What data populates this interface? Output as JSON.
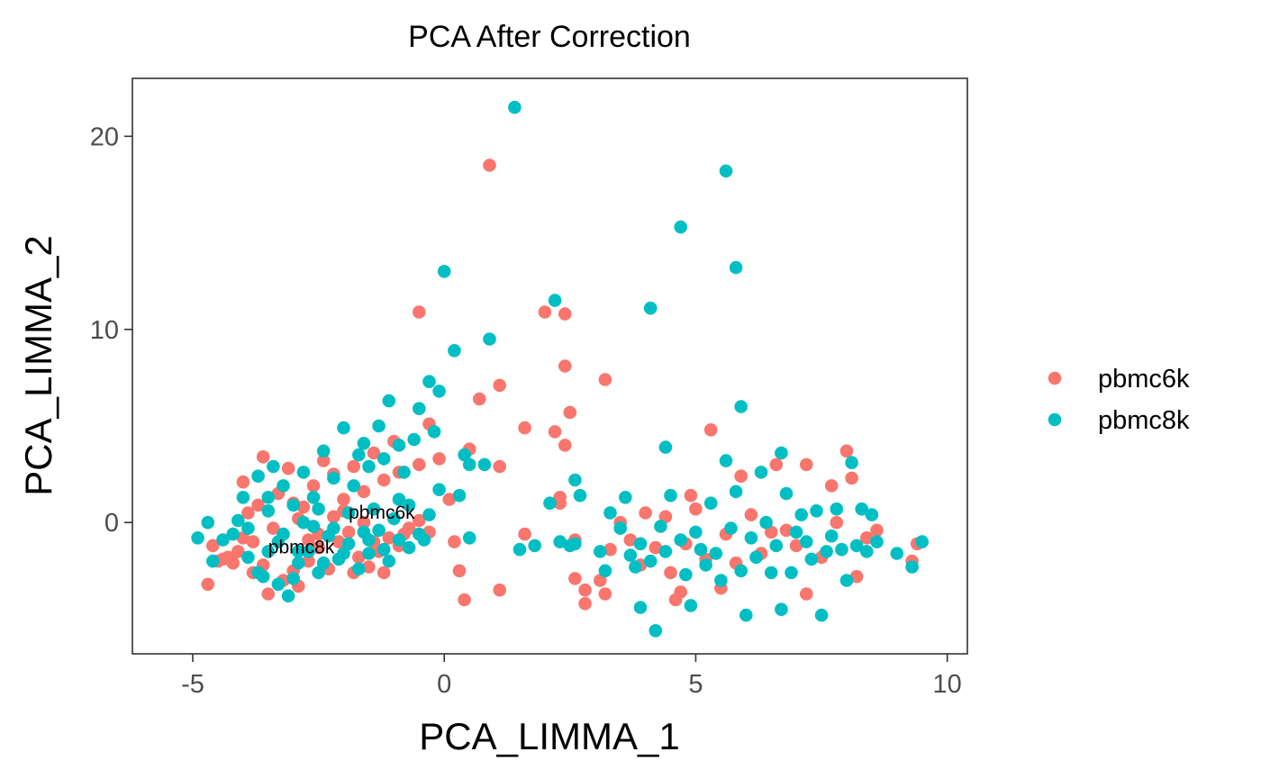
{
  "chart_data": {
    "type": "scatter",
    "title": "PCA After Correction",
    "xlabel": "PCA_LIMMA_1",
    "ylabel": "PCA_LIMMA_2",
    "xlim": [
      -6.2,
      10.4
    ],
    "ylim": [
      -6.8,
      23
    ],
    "x_ticks": [
      -5,
      0,
      5,
      10
    ],
    "x_tick_labels": [
      "-5",
      "0",
      "5",
      "10"
    ],
    "y_ticks": [
      0,
      10,
      20
    ],
    "y_tick_labels": [
      "0",
      "10",
      "20"
    ],
    "grid": false,
    "legend_position": "right",
    "annotations": [
      {
        "text": "pbmc6k",
        "x": -1.9,
        "y": 0.2
      },
      {
        "text": "pbmc8k",
        "x": -3.5,
        "y": -1.6
      }
    ],
    "series": [
      {
        "name": "pbmc6k",
        "color": "#F8766D",
        "points": [
          [
            -4.7,
            -3.2
          ],
          [
            -4.5,
            -2.0
          ],
          [
            -4.3,
            -1.8
          ],
          [
            -4.6,
            -1.2
          ],
          [
            -4.1,
            -1.5
          ],
          [
            -4.0,
            -0.8
          ],
          [
            -3.8,
            -1.0
          ],
          [
            -3.6,
            -2.2
          ],
          [
            -3.5,
            -3.7
          ],
          [
            -3.2,
            -3.0
          ],
          [
            -3.0,
            -2.5
          ],
          [
            -2.9,
            -3.3
          ],
          [
            -2.7,
            -2.0
          ],
          [
            -2.5,
            -1.3
          ],
          [
            -2.3,
            -2.4
          ],
          [
            -2.1,
            -1.0
          ],
          [
            -1.9,
            -0.5
          ],
          [
            -1.7,
            -1.8
          ],
          [
            -1.5,
            -2.3
          ],
          [
            -1.3,
            -1.5
          ],
          [
            -1.1,
            -0.8
          ],
          [
            -0.9,
            -1.2
          ],
          [
            -0.7,
            -0.3
          ],
          [
            -0.5,
            0.1
          ],
          [
            -0.3,
            -0.5
          ],
          [
            -4.0,
            2.1
          ],
          [
            -3.6,
            3.4
          ],
          [
            -3.3,
            1.5
          ],
          [
            -3.1,
            2.8
          ],
          [
            -2.8,
            0.8
          ],
          [
            -2.6,
            1.9
          ],
          [
            -2.4,
            3.2
          ],
          [
            -2.2,
            2.5
          ],
          [
            -2.0,
            1.2
          ],
          [
            -1.8,
            2.9
          ],
          [
            -1.6,
            1.6
          ],
          [
            -1.4,
            3.6
          ],
          [
            -1.2,
            2.2
          ],
          [
            -1.0,
            4.2
          ],
          [
            -0.9,
            2.6
          ],
          [
            -0.5,
            3.0
          ],
          [
            -0.3,
            5.1
          ],
          [
            -0.5,
            10.9
          ],
          [
            -0.1,
            3.3
          ],
          [
            -3.9,
            0.5
          ],
          [
            -3.4,
            -0.3
          ],
          [
            -2.9,
            0.2
          ],
          [
            -2.5,
            -0.6
          ],
          [
            -2.0,
            0.6
          ],
          [
            -1.6,
            0.0
          ],
          [
            -1.4,
            -1.0
          ],
          [
            -3.7,
            0.9
          ],
          [
            -4.2,
            -2.1
          ],
          [
            -3.0,
            1.0
          ],
          [
            -2.2,
            0.3
          ],
          [
            0.1,
            1.2
          ],
          [
            0.2,
            -1.0
          ],
          [
            0.3,
            -2.5
          ],
          [
            0.4,
            -4.0
          ],
          [
            0.5,
            3.8
          ],
          [
            0.9,
            18.5
          ],
          [
            0.7,
            6.4
          ],
          [
            1.1,
            7.1
          ],
          [
            1.1,
            2.9
          ],
          [
            1.1,
            -3.5
          ],
          [
            1.6,
            4.9
          ],
          [
            1.6,
            -0.6
          ],
          [
            2.0,
            10.9
          ],
          [
            2.3,
            1.0
          ],
          [
            2.2,
            4.7
          ],
          [
            2.4,
            10.8
          ],
          [
            2.4,
            4.0
          ],
          [
            2.5,
            5.7
          ],
          [
            2.4,
            8.1
          ],
          [
            2.3,
            1.3
          ],
          [
            2.6,
            -0.9
          ],
          [
            2.6,
            -2.9
          ],
          [
            2.8,
            -3.5
          ],
          [
            2.8,
            -4.2
          ],
          [
            3.2,
            7.4
          ],
          [
            3.1,
            -3.0
          ],
          [
            3.2,
            -3.7
          ],
          [
            3.3,
            -1.4
          ],
          [
            3.5,
            0.0
          ],
          [
            3.7,
            -0.9
          ],
          [
            3.9,
            -2.2
          ],
          [
            4.0,
            0.5
          ],
          [
            4.2,
            -1.3
          ],
          [
            4.4,
            0.3
          ],
          [
            4.5,
            -2.6
          ],
          [
            4.6,
            -4.0
          ],
          [
            4.7,
            -3.6
          ],
          [
            4.8,
            -1.1
          ],
          [
            4.9,
            1.4
          ],
          [
            5.0,
            0.7
          ],
          [
            5.2,
            -1.9
          ],
          [
            5.3,
            4.8
          ],
          [
            5.5,
            -3.4
          ],
          [
            5.6,
            -0.6
          ],
          [
            5.8,
            -2.1
          ],
          [
            5.9,
            2.4
          ],
          [
            6.1,
            0.4
          ],
          [
            6.3,
            -1.6
          ],
          [
            6.5,
            -0.5
          ],
          [
            6.6,
            3.0
          ],
          [
            6.8,
            -0.4
          ],
          [
            7.0,
            -1.2
          ],
          [
            7.2,
            -3.7
          ],
          [
            7.2,
            3.0
          ],
          [
            7.5,
            -1.8
          ],
          [
            7.7,
            1.9
          ],
          [
            7.8,
            0.0
          ],
          [
            8.0,
            3.7
          ],
          [
            8.1,
            2.3
          ],
          [
            8.2,
            -2.8
          ],
          [
            8.4,
            -0.8
          ],
          [
            8.6,
            -0.4
          ],
          [
            9.3,
            -2.0
          ],
          [
            9.4,
            -1.1
          ],
          [
            -1.2,
            -2.6
          ],
          [
            -2.7,
            -0.9
          ],
          [
            -3.8,
            -2.6
          ],
          [
            -4.4,
            -1.9
          ],
          [
            -0.8,
            -0.6
          ],
          [
            -1.8,
            -2.6
          ]
        ]
      },
      {
        "name": "pbmc8k",
        "color": "#00BFC4",
        "points": [
          [
            -4.9,
            -0.8
          ],
          [
            -4.7,
            0.0
          ],
          [
            -4.4,
            -0.9
          ],
          [
            -4.1,
            0.1
          ],
          [
            -3.9,
            -1.8
          ],
          [
            -3.7,
            -2.6
          ],
          [
            -3.5,
            -1.5
          ],
          [
            -3.3,
            -3.2
          ],
          [
            -3.1,
            -3.8
          ],
          [
            -2.9,
            -2.1
          ],
          [
            -2.7,
            -1.5
          ],
          [
            -2.5,
            -2.6
          ],
          [
            -2.3,
            -0.7
          ],
          [
            -2.1,
            -1.9
          ],
          [
            -1.9,
            -1.1
          ],
          [
            -1.7,
            -2.4
          ],
          [
            -1.5,
            -1.6
          ],
          [
            -1.3,
            -0.4
          ],
          [
            -1.1,
            -2.0
          ],
          [
            -0.9,
            -0.9
          ],
          [
            -0.7,
            -1.3
          ],
          [
            -0.5,
            -0.6
          ],
          [
            -0.3,
            0.4
          ],
          [
            -0.1,
            1.7
          ],
          [
            -4.0,
            1.3
          ],
          [
            -3.7,
            2.4
          ],
          [
            -3.4,
            2.9
          ],
          [
            -3.2,
            1.9
          ],
          [
            -3.0,
            0.9
          ],
          [
            -2.8,
            2.6
          ],
          [
            -2.6,
            1.3
          ],
          [
            -2.4,
            3.7
          ],
          [
            -2.2,
            2.3
          ],
          [
            -2.0,
            4.9
          ],
          [
            -1.8,
            1.9
          ],
          [
            -1.6,
            4.1
          ],
          [
            -1.5,
            2.9
          ],
          [
            -1.3,
            5.0
          ],
          [
            -1.2,
            3.3
          ],
          [
            -1.1,
            6.3
          ],
          [
            -0.9,
            4.0
          ],
          [
            -0.8,
            2.6
          ],
          [
            -0.6,
            4.3
          ],
          [
            -0.5,
            5.9
          ],
          [
            -0.3,
            7.3
          ],
          [
            -0.1,
            6.8
          ],
          [
            -0.2,
            4.7
          ],
          [
            0.0,
            13.0
          ],
          [
            -3.9,
            -0.3
          ],
          [
            -3.5,
            0.6
          ],
          [
            -3.2,
            -0.6
          ],
          [
            -2.8,
            0.0
          ],
          [
            -2.5,
            0.7
          ],
          [
            -2.2,
            -0.3
          ],
          [
            -1.9,
            0.5
          ],
          [
            -1.6,
            -0.5
          ],
          [
            -1.4,
            0.7
          ],
          [
            -1.0,
            0.2
          ],
          [
            -0.7,
            0.9
          ],
          [
            -0.4,
            -0.9
          ],
          [
            -3.6,
            -2.8
          ],
          [
            -3.0,
            -2.9
          ],
          [
            -2.4,
            -2.1
          ],
          [
            -4.2,
            -0.6
          ],
          [
            -3.3,
            -1.0
          ],
          [
            -2.6,
            -0.2
          ],
          [
            -2.0,
            -1.6
          ],
          [
            -1.5,
            -0.9
          ],
          [
            0.2,
            8.9
          ],
          [
            0.3,
            1.4
          ],
          [
            0.4,
            3.5
          ],
          [
            0.5,
            -0.8
          ],
          [
            0.5,
            3.0
          ],
          [
            0.8,
            3.0
          ],
          [
            0.9,
            9.5
          ],
          [
            1.4,
            21.5
          ],
          [
            1.5,
            -1.4
          ],
          [
            1.8,
            -1.2
          ],
          [
            2.1,
            1.0
          ],
          [
            2.2,
            11.5
          ],
          [
            2.3,
            -1.0
          ],
          [
            2.5,
            -1.2
          ],
          [
            2.6,
            -1.1
          ],
          [
            2.6,
            2.2
          ],
          [
            2.7,
            1.4
          ],
          [
            3.1,
            -1.5
          ],
          [
            3.2,
            -2.5
          ],
          [
            3.3,
            0.5
          ],
          [
            3.5,
            -0.3
          ],
          [
            3.6,
            1.3
          ],
          [
            3.7,
            -1.7
          ],
          [
            3.8,
            -2.3
          ],
          [
            3.9,
            -1.1
          ],
          [
            3.9,
            -4.4
          ],
          [
            4.1,
            -2.0
          ],
          [
            4.1,
            11.1
          ],
          [
            4.2,
            -5.6
          ],
          [
            4.3,
            -0.2
          ],
          [
            4.4,
            3.9
          ],
          [
            4.4,
            -1.5
          ],
          [
            4.5,
            1.4
          ],
          [
            4.7,
            15.3
          ],
          [
            4.7,
            -0.9
          ],
          [
            4.8,
            -2.7
          ],
          [
            4.9,
            -4.3
          ],
          [
            5.0,
            -0.5
          ],
          [
            5.1,
            -1.4
          ],
          [
            5.2,
            -2.2
          ],
          [
            5.3,
            1.0
          ],
          [
            5.4,
            -1.6
          ],
          [
            5.5,
            -3.0
          ],
          [
            5.6,
            18.2
          ],
          [
            5.6,
            3.2
          ],
          [
            5.7,
            -0.3
          ],
          [
            5.8,
            13.2
          ],
          [
            5.8,
            1.6
          ],
          [
            5.9,
            6.0
          ],
          [
            5.9,
            -2.5
          ],
          [
            6.0,
            -4.8
          ],
          [
            6.1,
            -0.8
          ],
          [
            6.2,
            -1.8
          ],
          [
            6.3,
            2.6
          ],
          [
            6.4,
            0.0
          ],
          [
            6.5,
            -2.6
          ],
          [
            6.6,
            -1.2
          ],
          [
            6.7,
            3.6
          ],
          [
            6.7,
            -4.5
          ],
          [
            6.8,
            1.5
          ],
          [
            6.9,
            -2.6
          ],
          [
            7.0,
            -0.5
          ],
          [
            7.1,
            0.4
          ],
          [
            7.2,
            -1.0
          ],
          [
            7.3,
            -1.9
          ],
          [
            7.4,
            0.6
          ],
          [
            7.5,
            -4.8
          ],
          [
            7.6,
            -1.5
          ],
          [
            7.7,
            -0.7
          ],
          [
            7.8,
            0.7
          ],
          [
            7.9,
            -1.4
          ],
          [
            8.0,
            -3.0
          ],
          [
            8.1,
            3.1
          ],
          [
            8.2,
            -1.2
          ],
          [
            8.3,
            0.7
          ],
          [
            8.4,
            -1.5
          ],
          [
            8.5,
            0.4
          ],
          [
            8.6,
            -1.0
          ],
          [
            9.0,
            -1.6
          ],
          [
            9.3,
            -2.3
          ],
          [
            9.5,
            -1.0
          ],
          [
            -4.6,
            -2.0
          ],
          [
            -1.7,
            3.5
          ],
          [
            -0.9,
            1.2
          ],
          [
            -2.9,
            -1.5
          ],
          [
            -3.5,
            1.3
          ],
          [
            -1.2,
            -1.4
          ]
        ]
      }
    ]
  }
}
